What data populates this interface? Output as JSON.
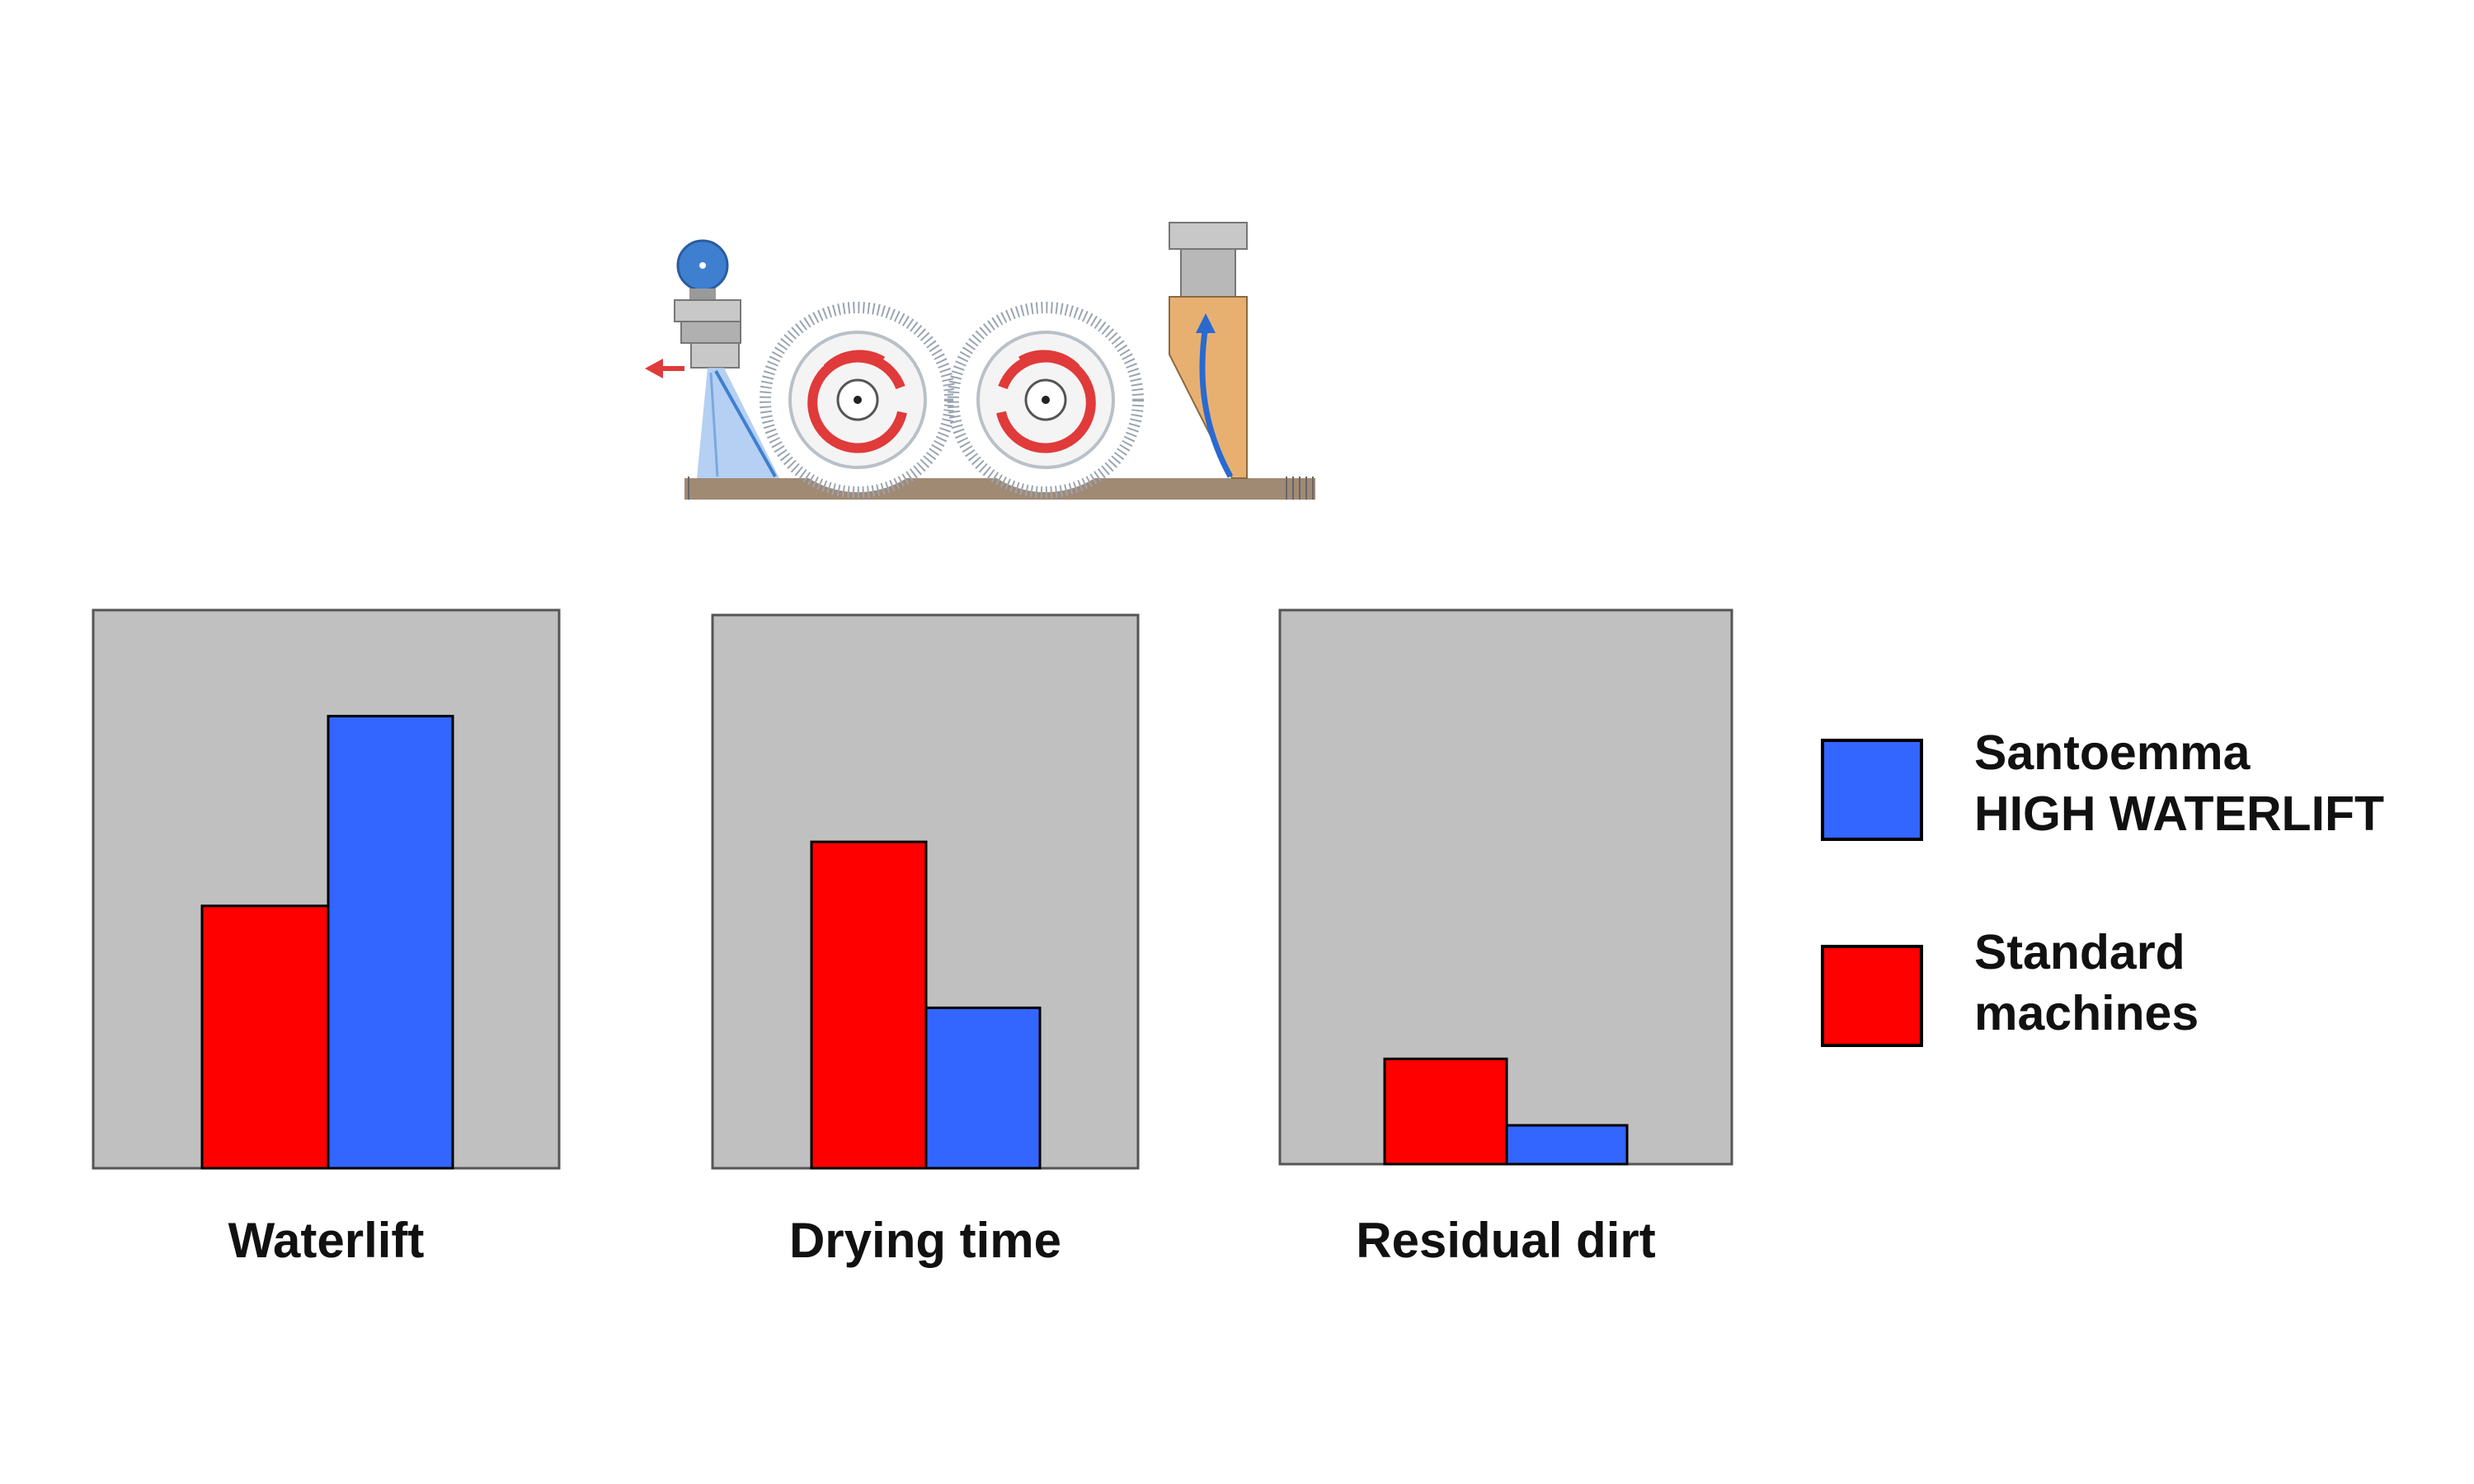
{
  "colors": {
    "santoemma": "#3366ff",
    "standard": "#ff0000",
    "panel_bg": "#c0c0c0",
    "panel_border": "#555555",
    "illustration_blue": "#4a86d6",
    "illustration_red": "#e03a3a",
    "squeegee": "#e8b070"
  },
  "illustration": {
    "icons": [
      "spray-nozzle-icon",
      "brush-roller-icon",
      "brush-roller-icon",
      "vacuum-squeegee-icon"
    ]
  },
  "legend": {
    "santoemma_line1": "Santoemma",
    "santoemma_line2": "HIGH WATERLIFT",
    "standard_line1": "Standard",
    "standard_line2": "machines"
  },
  "chart_data": [
    {
      "type": "bar",
      "categories": [
        "Waterlift"
      ],
      "series": [
        {
          "name": "Standard machines",
          "values": [
            47
          ]
        },
        {
          "name": "Santoemma HIGH WATERLIFT",
          "values": [
            81
          ]
        }
      ],
      "xlabel": "Waterlift",
      "ylim": [
        0,
        100
      ],
      "grid": false
    },
    {
      "type": "bar",
      "categories": [
        "Drying time"
      ],
      "series": [
        {
          "name": "Standard machines",
          "values": [
            59
          ]
        },
        {
          "name": "Santoemma HIGH WATERLIFT",
          "values": [
            29
          ]
        }
      ],
      "xlabel": "Drying time",
      "ylim": [
        0,
        100
      ],
      "grid": false
    },
    {
      "type": "bar",
      "categories": [
        "Residual dirt"
      ],
      "series": [
        {
          "name": "Standard machines",
          "values": [
            19
          ]
        },
        {
          "name": "Santoemma HIGH WATERLIFT",
          "values": [
            7
          ]
        }
      ],
      "xlabel": "Residual dirt",
      "ylim": [
        0,
        100
      ],
      "grid": false
    }
  ]
}
